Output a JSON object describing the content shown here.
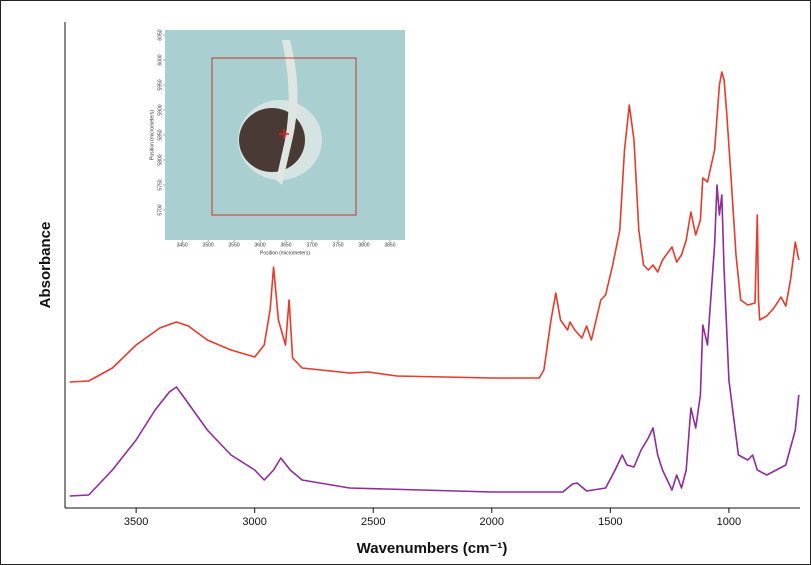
{
  "chart_data": {
    "type": "line",
    "xlabel": "Wavenumbers (cm⁻¹)",
    "ylabel": "Absorbance",
    "xlim": [
      3800,
      700
    ],
    "xticks": [
      3500,
      3000,
      2500,
      2000,
      1500,
      1000
    ],
    "ylim": [
      0,
      486
    ],
    "series": [
      {
        "color": "#e8392b",
        "x": [
          3780,
          3700,
          3600,
          3500,
          3400,
          3330,
          3280,
          3200,
          3100,
          3000,
          2960,
          2935,
          2920,
          2900,
          2870,
          2855,
          2840,
          2800,
          2600,
          2520,
          2400,
          2000,
          1800,
          1780,
          1750,
          1730,
          1710,
          1680,
          1670,
          1650,
          1620,
          1600,
          1580,
          1540,
          1520,
          1490,
          1460,
          1440,
          1420,
          1400,
          1380,
          1360,
          1340,
          1320,
          1300,
          1280,
          1240,
          1220,
          1200,
          1180,
          1160,
          1140,
          1120,
          1110,
          1090,
          1060,
          1040,
          1030,
          1020,
          1010,
          990,
          970,
          950,
          920,
          890,
          880,
          875,
          870,
          840,
          810,
          780,
          760,
          740,
          720,
          705
        ],
        "values": [
          126,
          127,
          140,
          163,
          180,
          186,
          182,
          168,
          158,
          151,
          163,
          198,
          241,
          188,
          163,
          208,
          150,
          140,
          135,
          136,
          132,
          130,
          130,
          138,
          188,
          215,
          188,
          178,
          186,
          178,
          170,
          182,
          168,
          208,
          213,
          243,
          278,
          358,
          403,
          368,
          278,
          243,
          238,
          243,
          236,
          248,
          261,
          246,
          253,
          268,
          296,
          273,
          288,
          330,
          326,
          358,
          423,
          436,
          428,
          398,
          328,
          253,
          208,
          203,
          205,
          293,
          208,
          188,
          192,
          200,
          211,
          202,
          228,
          266,
          248
        ]
      },
      {
        "color": "#8e2c9a",
        "x": [
          3780,
          3700,
          3600,
          3500,
          3420,
          3360,
          3330,
          3290,
          3200,
          3100,
          3000,
          2960,
          2920,
          2890,
          2850,
          2800,
          2600,
          2000,
          1700,
          1660,
          1640,
          1600,
          1520,
          1480,
          1450,
          1430,
          1400,
          1370,
          1340,
          1320,
          1300,
          1280,
          1240,
          1220,
          1200,
          1180,
          1160,
          1140,
          1120,
          1110,
          1090,
          1060,
          1050,
          1040,
          1030,
          1020,
          1000,
          960,
          920,
          900,
          880,
          840,
          760,
          720,
          705
        ],
        "values": [
          12,
          13,
          38,
          68,
          98,
          116,
          121,
          108,
          78,
          53,
          38,
          28,
          38,
          50,
          38,
          28,
          20,
          16,
          16,
          24,
          25,
          17,
          20,
          38,
          53,
          43,
          41,
          58,
          70,
          80,
          53,
          38,
          18,
          33,
          20,
          38,
          100,
          80,
          113,
          183,
          163,
          263,
          323,
          293,
          313,
          238,
          128,
          53,
          48,
          53,
          38,
          33,
          43,
          78,
          113
        ]
      }
    ],
    "inset": {
      "xlabel": "Position (micrometers)",
      "ylabel": "Position (micrometers)",
      "xlim": [
        3417,
        3879
      ],
      "xticks": [
        3450,
        3500,
        3550,
        3600,
        3650,
        3700,
        3750,
        3800,
        3850
      ],
      "ylim": [
        5640,
        6060
      ],
      "yticks": [
        6050,
        6000,
        5950,
        5900,
        5850,
        5800,
        5750,
        5700
      ]
    }
  }
}
